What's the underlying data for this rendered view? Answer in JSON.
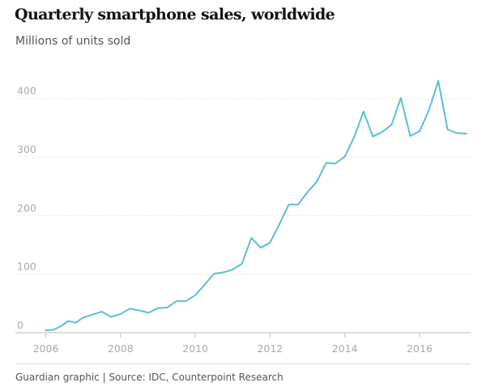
{
  "chart_data": {
    "type": "line",
    "title": "Quarterly smartphone sales, worldwide",
    "subtitle": "Millions of units sold",
    "xlabel": "",
    "ylabel": "",
    "xlim": [
      2006,
      2017.3
    ],
    "ylim": [
      0,
      430
    ],
    "x_ticks": [
      "2006",
      "2008",
      "2010",
      "2012",
      "2014",
      "2016"
    ],
    "y_ticks": [
      "0",
      "100",
      "200",
      "300",
      "400"
    ],
    "grid": true,
    "legend": "none",
    "line_color": "#5bc0cf",
    "series": [
      {
        "x": [
          2006.0,
          2006.2,
          2006.4,
          2006.6,
          2006.8,
          2007.0,
          2007.25,
          2007.5,
          2007.75,
          2008.0,
          2008.25,
          2008.5,
          2008.75,
          2009.0,
          2009.25,
          2009.5,
          2009.75,
          2010.0,
          2010.25,
          2010.5,
          2010.75,
          2011.0,
          2011.25,
          2011.5,
          2011.75,
          2012.0,
          2012.25,
          2012.5,
          2012.75,
          2013.0,
          2013.25,
          2013.5,
          2013.75,
          2014.0,
          2014.25,
          2014.5,
          2014.75,
          2015.0,
          2015.25,
          2015.5,
          2015.75,
          2016.0,
          2016.25,
          2016.5,
          2016.75,
          2017.0,
          2017.25
        ],
        "values": [
          4,
          5,
          11,
          20,
          17,
          26,
          31,
          36,
          27,
          32,
          41,
          38,
          34,
          42,
          43,
          54,
          54,
          64,
          82,
          101,
          103,
          108,
          118,
          162,
          145,
          154,
          185,
          219,
          219,
          240,
          258,
          290,
          289,
          301,
          334,
          378,
          335,
          343,
          355,
          401,
          336,
          344,
          380,
          430,
          347,
          341,
          340
        ]
      }
    ],
    "source": "Guardian graphic | Source: IDC, Counterpoint Research"
  }
}
